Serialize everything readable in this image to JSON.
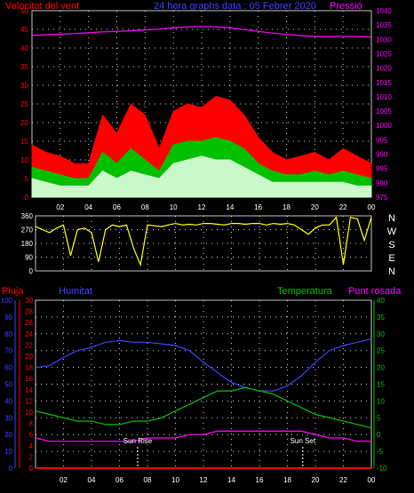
{
  "header": {
    "wind_label": "Velocitat del vent",
    "title": "24 hora graphs data : 05 Febrer 2020",
    "pressure_label": "Pressió"
  },
  "bottom_header": {
    "rain_label": "Pluja",
    "humidity_label": "Humitat",
    "temperature_label": "Temperatura",
    "dewpoint_label": "Punt rosada"
  },
  "annotations": {
    "sunrise": "Sun Rise",
    "sunset": "Sun Set"
  },
  "compass": [
    "N",
    "W",
    "S",
    "E",
    "N"
  ],
  "hour_labels": [
    "02",
    "04",
    "06",
    "08",
    "10",
    "12",
    "14",
    "16",
    "18",
    "20",
    "22",
    "00"
  ],
  "colors": {
    "wind_gust": "#ff0000",
    "wind_avg": "#00c000",
    "wind_speed": "#e0ffe0",
    "pressure": "#ff00ff",
    "direction": "#ffff00",
    "humidity": "#4040ff",
    "temperature": "#00c000",
    "dewpoint": "#ff00ff",
    "rain": "#ff0000",
    "grid": "#ffffff",
    "frame": "#c0c0c0"
  },
  "chart_data": [
    {
      "type": "area",
      "ylim_left": [
        0,
        50
      ],
      "ylim_right": [
        975,
        1040
      ],
      "yticks_left": [
        0,
        5,
        10,
        15,
        20,
        25,
        30,
        35,
        40,
        45,
        50
      ],
      "yticks_right": [
        975,
        980,
        985,
        990,
        995,
        1000,
        1005,
        1010,
        1015,
        1020,
        1025,
        1030,
        1035,
        1040
      ],
      "x_hours": [
        0,
        1,
        2,
        3,
        4,
        5,
        6,
        7,
        8,
        9,
        10,
        11,
        12,
        13,
        14,
        15,
        16,
        17,
        18,
        19,
        20,
        21,
        22,
        23,
        24
      ],
      "series": [
        {
          "name": "Velocitat del vent",
          "axis": "left",
          "role": "gust",
          "values": [
            14,
            12,
            11,
            9,
            9,
            22,
            17,
            25,
            22,
            13,
            23,
            25,
            24,
            27,
            26,
            22,
            16,
            12,
            10,
            11,
            12,
            10,
            13,
            11,
            9
          ]
        },
        {
          "name": "Velocitat del vent",
          "axis": "left",
          "role": "average",
          "values": [
            8,
            7,
            6,
            5,
            5,
            12,
            9,
            13,
            10,
            7,
            14,
            15,
            15,
            16,
            15,
            13,
            9,
            7,
            6,
            6,
            7,
            6,
            7,
            6,
            5
          ]
        },
        {
          "name": "Velocitat del vent",
          "axis": "left",
          "role": "speed",
          "values": [
            5,
            4,
            3,
            3,
            3,
            7,
            5,
            7,
            6,
            5,
            9,
            10,
            11,
            10,
            10,
            8,
            6,
            4,
            4,
            4,
            4,
            4,
            4,
            3,
            3
          ]
        },
        {
          "name": "Pressió",
          "axis": "right",
          "values": [
            1031.4,
            1031.6,
            1031.8,
            1032.0,
            1032.3,
            1032.6,
            1032.8,
            1033.0,
            1033.3,
            1033.6,
            1034.0,
            1034.3,
            1034.5,
            1034.4,
            1034.0,
            1033.4,
            1032.8,
            1032.2,
            1031.7,
            1031.3,
            1031.0,
            1031.0,
            1031.1,
            1031.0,
            1030.8
          ]
        }
      ]
    },
    {
      "type": "line",
      "ylim": [
        0,
        360
      ],
      "yticks": [
        0,
        90,
        180,
        270,
        360
      ],
      "x_hours": [
        0,
        0.5,
        1,
        1.5,
        2,
        2.5,
        3,
        3.5,
        4,
        4.5,
        5,
        5.5,
        6,
        6.5,
        7,
        7.5,
        8,
        8.5,
        9,
        9.5,
        10,
        10.5,
        11,
        11.5,
        12,
        12.5,
        13,
        13.5,
        14,
        14.5,
        15,
        15.5,
        16,
        16.5,
        17,
        17.5,
        18,
        18.5,
        19,
        19.5,
        20,
        20.5,
        21,
        21.5,
        22,
        22.5,
        23,
        23.5,
        24
      ],
      "series": [
        {
          "name": "direction",
          "values": [
            290,
            270,
            250,
            280,
            300,
            100,
            270,
            280,
            250,
            60,
            270,
            300,
            290,
            300,
            150,
            40,
            300,
            295,
            290,
            300,
            310,
            300,
            305,
            300,
            310,
            310,
            305,
            300,
            310,
            310,
            305,
            310,
            310,
            300,
            310,
            305,
            310,
            300,
            270,
            240,
            280,
            300,
            300,
            350,
            40,
            350,
            340,
            200,
            350
          ]
        }
      ]
    },
    {
      "type": "line",
      "ylim_left": [
        0,
        100
      ],
      "ylim_rain": [
        0,
        30
      ],
      "ylim_right": [
        -10,
        40
      ],
      "yticks_left": [
        0,
        10,
        20,
        30,
        40,
        50,
        60,
        70,
        80,
        90,
        100
      ],
      "yticks_rain": [
        0,
        2,
        4,
        6,
        8,
        10,
        12,
        14,
        16,
        18,
        20,
        22,
        24,
        26,
        28,
        30
      ],
      "yticks_right": [
        -10,
        -5,
        0,
        5,
        10,
        15,
        20,
        25,
        30,
        35,
        40
      ],
      "x_hours": [
        0,
        1,
        2,
        3,
        4,
        5,
        6,
        7,
        8,
        9,
        10,
        11,
        12,
        13,
        14,
        15,
        16,
        17,
        18,
        19,
        20,
        21,
        22,
        23,
        24
      ],
      "series": [
        {
          "name": "Humitat",
          "axis": "left",
          "values": [
            60,
            61,
            66,
            70,
            72,
            75,
            76,
            75,
            75,
            74,
            73,
            70,
            63,
            57,
            51,
            48,
            46,
            46,
            49,
            55,
            63,
            70,
            73,
            75,
            77
          ]
        },
        {
          "name": "Temperatura",
          "axis": "right",
          "values": [
            7,
            6,
            5,
            4,
            4,
            3,
            3,
            4,
            4,
            5,
            7,
            9,
            11,
            13,
            13,
            14,
            13,
            12,
            10,
            8,
            6,
            5,
            4,
            3,
            2
          ]
        },
        {
          "name": "Punt rosada",
          "axis": "right",
          "values": [
            -1,
            -2,
            -2,
            -2,
            -2,
            -2,
            -2,
            -2,
            -1,
            -1,
            -1,
            0,
            0,
            1,
            1,
            1,
            1,
            1,
            1,
            1,
            0,
            -1,
            -1,
            -2,
            -2
          ]
        },
        {
          "name": "Pluja",
          "axis": "rain",
          "values": [
            0,
            0,
            0,
            0,
            0,
            0,
            0,
            0,
            0,
            0,
            0,
            0,
            0,
            0,
            0,
            0,
            0,
            0,
            0,
            0,
            0,
            0,
            0,
            0,
            0
          ]
        }
      ],
      "sunrise_hour": 7.3,
      "sunset_hour": 19.1
    }
  ]
}
